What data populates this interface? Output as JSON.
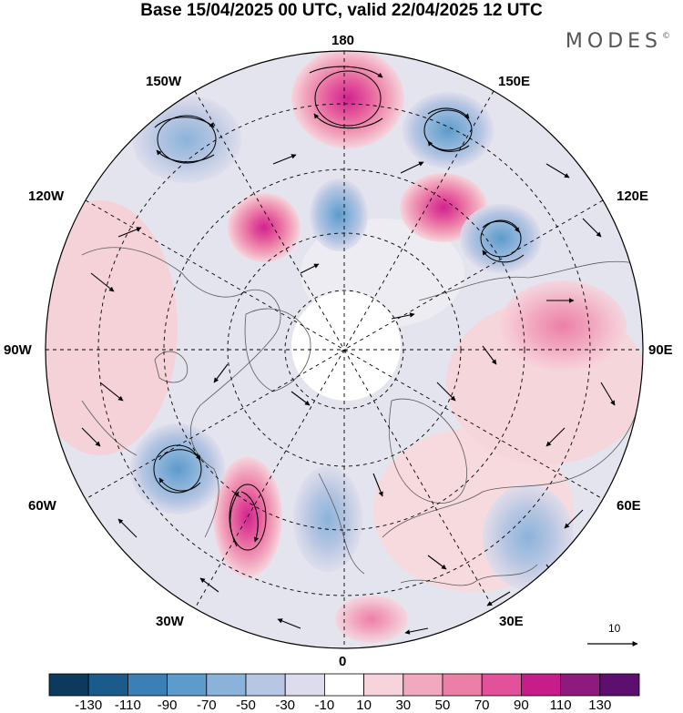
{
  "title": "Base 15/04/2025 00 UTC, valid 22/04/2025 12 UTC",
  "brand": "MODES",
  "brand_mark": "©",
  "map": {
    "projection": "north-polar-stereographic",
    "longitude_labels": {
      "lon_180": "180",
      "lon_150W": "150W",
      "lon_150E": "150E",
      "lon_120W": "120W",
      "lon_120E": "120E",
      "lon_90W": "90W",
      "lon_90E": "90E",
      "lon_60W": "60W",
      "lon_60E": "60E",
      "lon_30W": "30W",
      "lon_30E": "30E",
      "lon_0": "0"
    },
    "wind_vector_reference": "10",
    "anomaly_centers": [
      {
        "name": "center-north-pacific-positive",
        "sign": "positive",
        "peak": 90
      },
      {
        "name": "center-alaska-negative",
        "sign": "negative",
        "peak": -50
      },
      {
        "name": "center-kamchatka-negative",
        "sign": "negative",
        "peak": -70
      },
      {
        "name": "center-east-siberia-positive",
        "sign": "positive",
        "peak": 70
      },
      {
        "name": "center-laptev-negative",
        "sign": "negative",
        "peak": -70
      },
      {
        "name": "center-siberia-positive",
        "sign": "positive",
        "peak": 70
      },
      {
        "name": "center-canada-positive",
        "sign": "positive",
        "peak": 70
      },
      {
        "name": "center-beaufort-negative",
        "sign": "negative",
        "peak": -50
      },
      {
        "name": "center-atlantic-positive",
        "sign": "positive",
        "peak": 90
      },
      {
        "name": "center-newfoundland-negative",
        "sign": "negative",
        "peak": -70
      },
      {
        "name": "center-west-europe-negative",
        "sign": "negative",
        "peak": -50
      },
      {
        "name": "center-caspian-negative",
        "sign": "negative",
        "peak": -50
      },
      {
        "name": "center-mediterranean-positive",
        "sign": "positive",
        "peak": 50
      }
    ]
  },
  "colorbar": {
    "colors": [
      "#0b3a5c",
      "#1b5b8c",
      "#3a7fb5",
      "#5c9bcb",
      "#8bb3da",
      "#b7c6e2",
      "#dcdcec",
      "#ffffff",
      "#f7d3dc",
      "#f2a9c0",
      "#ec7fa8",
      "#e2519a",
      "#c61d8b",
      "#8e1a7e",
      "#5d0f70"
    ],
    "labels": [
      "-130",
      "-110",
      "-90",
      "-70",
      "-50",
      "-30",
      "-10",
      "10",
      "30",
      "50",
      "70",
      "90",
      "110",
      "130"
    ]
  }
}
